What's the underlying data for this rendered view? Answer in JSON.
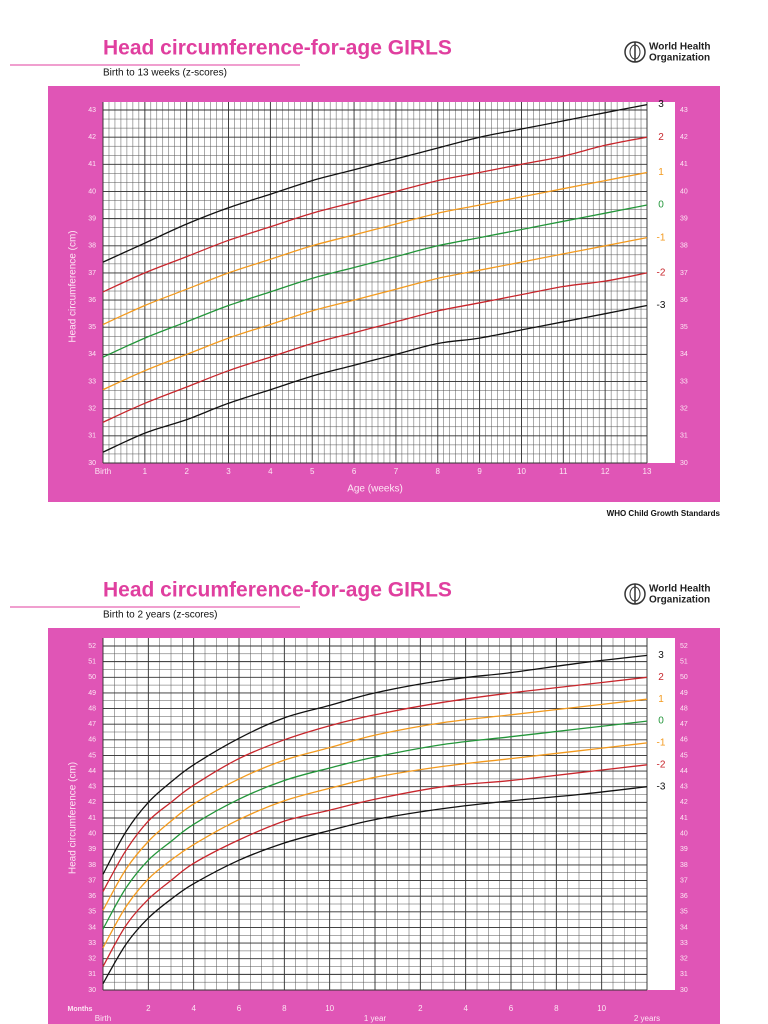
{
  "organization": [
    "World Health",
    "Organization"
  ],
  "footer": "WHO Child Growth Standards",
  "chart_data": [
    {
      "type": "line",
      "title": "Head circumference-for-age  GIRLS",
      "subtitle": "Birth to 13 weeks (z-scores)",
      "x_label": "Age (weeks)",
      "y_label": "Head circumference (cm)",
      "x": [
        0,
        1,
        2,
        3,
        4,
        5,
        6,
        7,
        8,
        9,
        10,
        11,
        12,
        13
      ],
      "xlim": [
        0,
        13
      ],
      "ylim": [
        30,
        43
      ],
      "xticks": [
        {
          "value": 0,
          "label": "Birth"
        },
        1,
        2,
        3,
        4,
        5,
        6,
        7,
        8,
        9,
        10,
        11,
        12,
        13
      ],
      "yticks": [
        30,
        31,
        32,
        33,
        34,
        35,
        36,
        37,
        38,
        39,
        40,
        41,
        42,
        43
      ],
      "grid": true,
      "series": [
        {
          "name": "3",
          "color": "#111111",
          "values": [
            37.4,
            38.1,
            38.8,
            39.4,
            39.9,
            40.4,
            40.8,
            41.2,
            41.6,
            42.0,
            42.3,
            42.6,
            42.9,
            43.2
          ]
        },
        {
          "name": "2",
          "color": "#c8262c",
          "values": [
            36.3,
            37.0,
            37.6,
            38.2,
            38.7,
            39.2,
            39.6,
            40.0,
            40.4,
            40.7,
            41.0,
            41.3,
            41.7,
            42.0
          ]
        },
        {
          "name": "1",
          "color": "#f39a1e",
          "values": [
            35.1,
            35.8,
            36.4,
            37.0,
            37.5,
            38.0,
            38.4,
            38.8,
            39.2,
            39.5,
            39.8,
            40.1,
            40.4,
            40.7
          ]
        },
        {
          "name": "0",
          "color": "#23963a",
          "values": [
            33.9,
            34.6,
            35.2,
            35.8,
            36.3,
            36.8,
            37.2,
            37.6,
            38.0,
            38.3,
            38.6,
            38.9,
            39.2,
            39.5
          ]
        },
        {
          "name": "-1",
          "color": "#f39a1e",
          "values": [
            32.7,
            33.4,
            34.0,
            34.6,
            35.1,
            35.6,
            36.0,
            36.4,
            36.8,
            37.1,
            37.4,
            37.7,
            38.0,
            38.3
          ]
        },
        {
          "name": "-2",
          "color": "#c8262c",
          "values": [
            31.5,
            32.2,
            32.8,
            33.4,
            33.9,
            34.4,
            34.8,
            35.2,
            35.6,
            35.9,
            36.2,
            36.5,
            36.7,
            37.0
          ]
        },
        {
          "name": "-3",
          "color": "#111111",
          "values": [
            30.4,
            31.1,
            31.6,
            32.2,
            32.7,
            33.2,
            33.6,
            34.0,
            34.4,
            34.6,
            34.9,
            35.2,
            35.5,
            35.8
          ]
        }
      ]
    },
    {
      "type": "line",
      "title": "Head circumference-for-age  GIRLS",
      "subtitle": "Birth to 2 years (z-scores)",
      "x_unit": "Months",
      "y_label": "Head circumference (cm)",
      "x": [
        0,
        1,
        2,
        3,
        4,
        6,
        8,
        10,
        12,
        15,
        18,
        21,
        24
      ],
      "xlim": [
        0,
        24
      ],
      "ylim": [
        30,
        52
      ],
      "xticks": [
        {
          "value": 0,
          "label": "Birth"
        },
        2,
        4,
        6,
        8,
        10,
        {
          "value": 12,
          "label": "1 year"
        },
        {
          "value": 14,
          "label": "2"
        },
        {
          "value": 16,
          "label": "4"
        },
        {
          "value": 18,
          "label": "6"
        },
        {
          "value": 20,
          "label": "8"
        },
        {
          "value": 22,
          "label": "10"
        },
        {
          "value": 24,
          "label": "2 years"
        }
      ],
      "yticks": [
        30,
        31,
        32,
        33,
        34,
        35,
        36,
        37,
        38,
        39,
        40,
        41,
        42,
        43,
        44,
        45,
        46,
        47,
        48,
        49,
        50,
        51,
        52
      ],
      "grid": true,
      "series": [
        {
          "name": "3",
          "color": "#111111",
          "values": [
            37.4,
            40.1,
            42.0,
            43.3,
            44.4,
            46.1,
            47.4,
            48.2,
            49.0,
            49.8,
            50.3,
            50.9,
            51.4
          ]
        },
        {
          "name": "2",
          "color": "#c8262c",
          "values": [
            36.3,
            38.9,
            40.8,
            42.0,
            43.1,
            44.8,
            46.0,
            46.9,
            47.6,
            48.4,
            49.0,
            49.5,
            50.0
          ]
        },
        {
          "name": "1",
          "color": "#f39a1e",
          "values": [
            35.1,
            37.7,
            39.5,
            40.8,
            41.9,
            43.5,
            44.7,
            45.5,
            46.3,
            47.1,
            47.6,
            48.1,
            48.6
          ]
        },
        {
          "name": "0",
          "color": "#23963a",
          "values": [
            33.9,
            36.5,
            38.3,
            39.5,
            40.6,
            42.2,
            43.4,
            44.2,
            44.9,
            45.7,
            46.2,
            46.7,
            47.2
          ]
        },
        {
          "name": "-1",
          "color": "#f39a1e",
          "values": [
            32.7,
            35.3,
            37.1,
            38.3,
            39.3,
            40.9,
            42.1,
            42.9,
            43.6,
            44.3,
            44.8,
            45.3,
            45.8
          ]
        },
        {
          "name": "-2",
          "color": "#c8262c",
          "values": [
            31.5,
            34.1,
            35.8,
            37.0,
            38.1,
            39.6,
            40.8,
            41.5,
            42.2,
            43.0,
            43.4,
            43.9,
            44.4
          ]
        },
        {
          "name": "-3",
          "color": "#111111",
          "values": [
            30.4,
            32.9,
            34.6,
            35.8,
            36.8,
            38.3,
            39.4,
            40.2,
            40.9,
            41.6,
            42.1,
            42.5,
            43.0
          ]
        }
      ]
    }
  ]
}
